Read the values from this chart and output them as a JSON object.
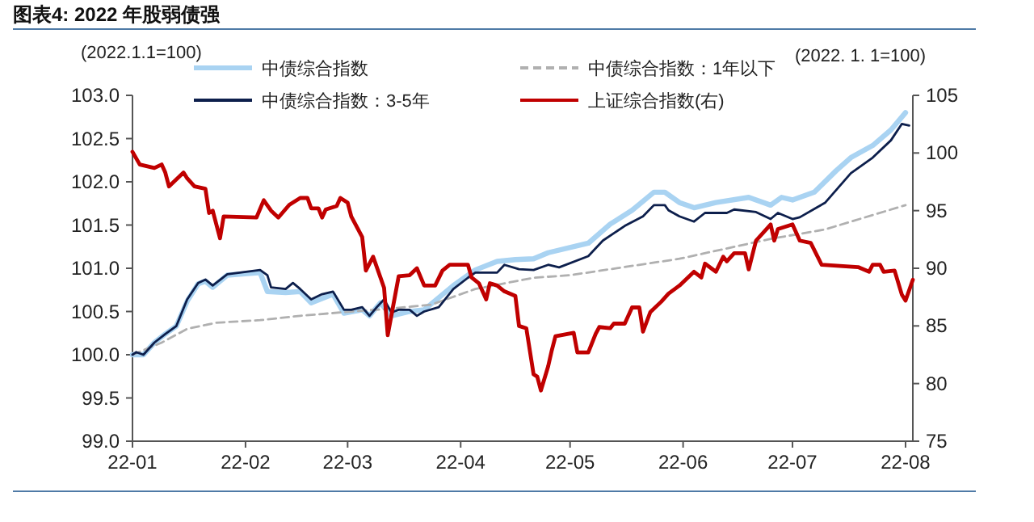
{
  "chart_data": {
    "type": "line",
    "title": "图表4:  2022 年股弱债强",
    "ylabel": "(2022.1.1=100)",
    "y2label": "(2022. 1. 1=100)",
    "xlim": [
      "2022-01-01",
      "2022-08-03"
    ],
    "xticks": [
      {
        "value": "2022-01-01",
        "label": "22-01"
      },
      {
        "value": "2022-02-01",
        "label": "22-02"
      },
      {
        "value": "2022-03-01",
        "label": "22-03"
      },
      {
        "value": "2022-04-01",
        "label": "22-04"
      },
      {
        "value": "2022-05-01",
        "label": "22-05"
      },
      {
        "value": "2022-06-01",
        "label": "22-06"
      },
      {
        "value": "2022-07-01",
        "label": "22-07"
      },
      {
        "value": "2022-08-01",
        "label": "22-08"
      }
    ],
    "ylim": [
      99,
      103
    ],
    "yticks": [
      {
        "value": 99,
        "label": "99.0"
      },
      {
        "value": 99.5,
        "label": "99.5"
      },
      {
        "value": 100,
        "label": "100.0"
      },
      {
        "value": 100.5,
        "label": "100.5"
      },
      {
        "value": 101,
        "label": "101.0"
      },
      {
        "value": 101.5,
        "label": "101.5"
      },
      {
        "value": 102,
        "label": "102.0"
      },
      {
        "value": 102.5,
        "label": "102.5"
      },
      {
        "value": 103,
        "label": "103.0"
      }
    ],
    "y2lim": [
      75,
      105
    ],
    "y2ticks": [
      75,
      80,
      85,
      90,
      95,
      100,
      105
    ],
    "legend": "top",
    "grid": false,
    "marker": "none",
    "series": [
      {
        "name": "中债综合指数",
        "color": "#a9d3f2",
        "x": [
          "2022-01-01",
          "2022-01-04",
          "2022-01-07",
          "2022-01-10",
          "2022-01-13",
          "2022-01-16",
          "2022-01-19",
          "2022-01-21",
          "2022-01-23",
          "2022-01-27",
          "2022-02-05",
          "2022-02-07",
          "2022-02-12",
          "2022-02-16",
          "2022-02-19",
          "2022-02-25",
          "2022-02-28",
          "2022-03-05",
          "2022-03-07",
          "2022-03-10",
          "2022-03-13",
          "2022-03-18",
          "2022-03-22",
          "2022-03-30",
          "2022-04-05",
          "2022-04-11",
          "2022-04-16",
          "2022-04-21",
          "2022-04-25",
          "2022-05-06",
          "2022-05-12",
          "2022-05-18",
          "2022-05-24",
          "2022-05-27",
          "2022-05-31",
          "2022-06-04",
          "2022-06-10",
          "2022-06-19",
          "2022-06-25",
          "2022-06-28",
          "2022-07-01",
          "2022-07-07",
          "2022-07-13",
          "2022-07-17",
          "2022-07-23",
          "2022-07-28",
          "2022-08-01"
        ],
        "values": [
          100.0,
          100.0,
          100.14,
          100.24,
          100.33,
          100.62,
          100.82,
          100.85,
          100.78,
          100.92,
          100.95,
          100.73,
          100.72,
          100.73,
          100.6,
          100.7,
          100.48,
          100.52,
          100.45,
          100.6,
          100.45,
          100.5,
          100.52,
          100.8,
          100.98,
          101.08,
          101.1,
          101.11,
          101.18,
          101.29,
          101.51,
          101.67,
          101.88,
          101.88,
          101.76,
          101.7,
          101.76,
          101.82,
          101.73,
          101.82,
          101.79,
          101.88,
          102.13,
          102.28,
          102.42,
          102.6,
          102.8
        ]
      },
      {
        "name": "中债综合指数：1年以下",
        "color": "#b0b0b0",
        "line_style": "dashed",
        "x": [
          "2022-01-01",
          "2022-01-09",
          "2022-01-16",
          "2022-01-24",
          "2022-02-05",
          "2022-02-16",
          "2022-03-02",
          "2022-03-12",
          "2022-03-24",
          "2022-04-05",
          "2022-04-21",
          "2022-05-01",
          "2022-05-31",
          "2022-06-25",
          "2022-07-10",
          "2022-08-01"
        ],
        "values": [
          100.0,
          100.14,
          100.3,
          100.37,
          100.4,
          100.45,
          100.5,
          100.53,
          100.58,
          100.76,
          100.89,
          100.92,
          101.11,
          101.34,
          101.45,
          101.73
        ]
      },
      {
        "name": "中债综合指数：3-5年",
        "color": "#0d1f4c",
        "x": [
          "2022-01-01",
          "2022-01-02",
          "2022-01-04",
          "2022-01-07",
          "2022-01-10",
          "2022-01-13",
          "2022-01-16",
          "2022-01-19",
          "2022-01-21",
          "2022-01-23",
          "2022-01-27",
          "2022-02-05",
          "2022-02-07",
          "2022-02-08",
          "2022-02-12",
          "2022-02-14",
          "2022-02-16",
          "2022-02-19",
          "2022-02-22",
          "2022-02-25",
          "2022-02-28",
          "2022-03-02",
          "2022-03-05",
          "2022-03-07",
          "2022-03-09",
          "2022-03-11",
          "2022-03-13",
          "2022-03-15",
          "2022-03-18",
          "2022-03-20",
          "2022-03-22",
          "2022-03-26",
          "2022-03-30",
          "2022-04-03",
          "2022-04-05",
          "2022-04-11",
          "2022-04-13",
          "2022-04-17",
          "2022-04-21",
          "2022-04-25",
          "2022-04-28",
          "2022-05-06",
          "2022-05-10",
          "2022-05-16",
          "2022-05-21",
          "2022-05-24",
          "2022-05-27",
          "2022-05-28",
          "2022-05-31",
          "2022-06-04",
          "2022-06-07",
          "2022-06-13",
          "2022-06-15",
          "2022-06-21",
          "2022-06-25",
          "2022-06-27",
          "2022-07-01",
          "2022-07-03",
          "2022-07-10",
          "2022-07-17",
          "2022-07-23",
          "2022-07-28",
          "2022-07-31",
          "2022-08-02"
        ],
        "values": [
          100.0,
          100.03,
          100.0,
          100.14,
          100.24,
          100.33,
          100.64,
          100.83,
          100.87,
          100.8,
          100.93,
          100.98,
          100.92,
          100.78,
          100.76,
          100.83,
          100.76,
          100.64,
          100.7,
          100.73,
          100.52,
          100.52,
          100.55,
          100.45,
          100.55,
          100.64,
          100.49,
          100.52,
          100.52,
          100.45,
          100.5,
          100.55,
          100.76,
          100.89,
          100.95,
          100.95,
          101.04,
          100.99,
          100.98,
          101.04,
          101.01,
          101.14,
          101.32,
          101.49,
          101.6,
          101.73,
          101.73,
          101.67,
          101.6,
          101.54,
          101.64,
          101.64,
          101.68,
          101.65,
          101.57,
          101.64,
          101.57,
          101.59,
          101.76,
          102.1,
          102.28,
          102.48,
          102.67,
          102.65
        ]
      },
      {
        "name": "上证综合指数(右)",
        "color": "#c00000",
        "axis": "y2",
        "x": [
          "2022-01-01",
          "2022-01-03",
          "2022-01-07",
          "2022-01-09",
          "2022-01-10",
          "2022-01-11",
          "2022-01-15",
          "2022-01-16",
          "2022-01-18",
          "2022-01-21",
          "2022-01-22",
          "2022-01-23",
          "2022-01-25",
          "2022-01-26",
          "2022-02-04",
          "2022-02-06",
          "2022-02-08",
          "2022-02-10",
          "2022-02-13",
          "2022-02-16",
          "2022-02-18",
          "2022-02-19",
          "2022-02-21",
          "2022-02-22",
          "2022-02-23",
          "2022-02-26",
          "2022-02-27",
          "2022-03-01",
          "2022-03-02",
          "2022-03-05",
          "2022-03-06",
          "2022-03-08",
          "2022-03-10",
          "2022-03-11",
          "2022-03-12",
          "2022-03-15",
          "2022-03-18",
          "2022-03-20",
          "2022-03-22",
          "2022-03-25",
          "2022-03-27",
          "2022-03-29",
          "2022-04-03",
          "2022-04-04",
          "2022-04-06",
          "2022-04-08",
          "2022-04-09",
          "2022-04-11",
          "2022-04-13",
          "2022-04-16",
          "2022-04-17",
          "2022-04-19",
          "2022-04-21",
          "2022-04-22",
          "2022-04-23",
          "2022-04-25",
          "2022-04-26",
          "2022-04-27",
          "2022-05-02",
          "2022-05-03",
          "2022-05-06",
          "2022-05-08",
          "2022-05-09",
          "2022-05-12",
          "2022-05-13",
          "2022-05-16",
          "2022-05-18",
          "2022-05-20",
          "2022-05-21",
          "2022-05-23",
          "2022-05-26",
          "2022-05-28",
          "2022-05-31",
          "2022-06-04",
          "2022-06-06",
          "2022-06-07",
          "2022-06-10",
          "2022-06-12",
          "2022-06-13",
          "2022-06-15",
          "2022-06-18",
          "2022-06-19",
          "2022-06-21",
          "2022-06-25",
          "2022-06-26",
          "2022-06-27",
          "2022-07-01",
          "2022-07-03",
          "2022-07-06",
          "2022-07-09",
          "2022-07-19",
          "2022-07-22",
          "2022-07-23",
          "2022-07-25",
          "2022-07-26",
          "2022-07-29",
          "2022-07-31",
          "2022-08-01",
          "2022-08-03"
        ],
        "values": [
          100.1,
          99.0,
          98.7,
          99.0,
          98.3,
          97.1,
          98.3,
          97.8,
          97.1,
          96.9,
          94.8,
          95.0,
          92.6,
          94.5,
          94.4,
          95.9,
          95.0,
          94.4,
          95.5,
          96.1,
          96.1,
          95.2,
          95.2,
          94.4,
          95.1,
          95.4,
          96.1,
          95.7,
          94.5,
          92.7,
          89.8,
          91.0,
          89.2,
          88.3,
          84.2,
          89.3,
          89.4,
          90.0,
          88.5,
          88.5,
          89.8,
          90.3,
          90.3,
          89.2,
          88.7,
          87.3,
          88.7,
          88.5,
          88.0,
          87.6,
          85.0,
          84.8,
          80.8,
          80.6,
          79.4,
          81.5,
          82.9,
          84.1,
          84.4,
          82.7,
          82.7,
          84.3,
          84.9,
          84.8,
          85.2,
          85.2,
          86.6,
          86.6,
          84.5,
          86.2,
          87.1,
          87.8,
          88.5,
          89.7,
          89.2,
          90.4,
          89.7,
          91.0,
          90.6,
          91.3,
          91.3,
          89.9,
          92.4,
          93.8,
          92.4,
          93.4,
          93.8,
          92.4,
          92.2,
          90.3,
          90.1,
          89.7,
          90.3,
          90.3,
          89.7,
          89.8,
          87.7,
          87.2,
          89.0
        ]
      }
    ]
  }
}
